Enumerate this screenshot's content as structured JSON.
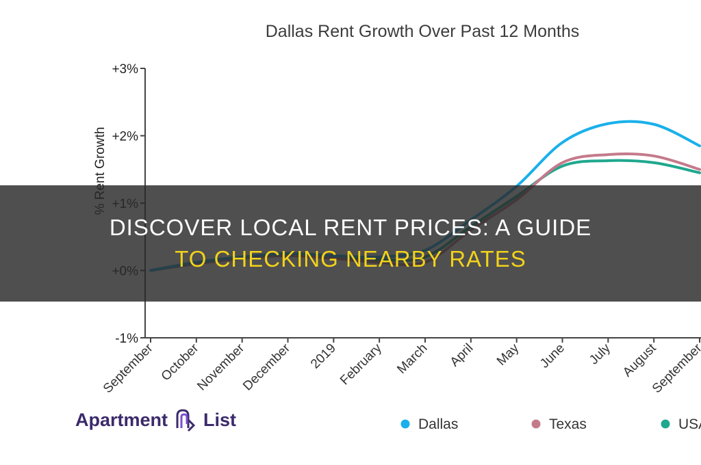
{
  "chart_data": {
    "type": "line",
    "title": "Dallas Rent Growth Over Past 12 Months",
    "ylabel": "% Rent Growth",
    "xlabel": "",
    "categories": [
      "September",
      "October",
      "November",
      "December",
      "2019",
      "February",
      "March",
      "April",
      "May",
      "June",
      "July",
      "August",
      "September"
    ],
    "yticks": [
      "+3%",
      "+2%",
      "+1%",
      "+0%",
      "-1%"
    ],
    "ytick_values": [
      3,
      2,
      1,
      0,
      -1
    ],
    "ylim": [
      -1,
      3
    ],
    "series": [
      {
        "name": "Dallas",
        "color": "#1ab0ea",
        "values": [
          0.0,
          0.12,
          0.2,
          0.25,
          0.22,
          0.2,
          0.3,
          0.75,
          1.25,
          1.9,
          2.18,
          2.17,
          1.85
        ]
      },
      {
        "name": "Texas",
        "color": "#c47a8a",
        "values": [
          0.0,
          0.1,
          0.18,
          0.22,
          0.18,
          0.12,
          0.12,
          0.6,
          1.05,
          1.6,
          1.72,
          1.7,
          1.5
        ]
      },
      {
        "name": "USA",
        "color": "#1fa88e",
        "values": [
          0.0,
          0.12,
          0.2,
          0.24,
          0.2,
          0.16,
          0.2,
          0.65,
          1.1,
          1.55,
          1.63,
          1.6,
          1.45
        ]
      }
    ],
    "grid": false,
    "legend_position": "bottom-right"
  },
  "logo": {
    "left": "Apartment",
    "right": "List"
  },
  "banner": {
    "line1": "DISCOVER LOCAL RENT PRICES: A GUIDE",
    "line2": "TO CHECKING NEARBY RATES"
  }
}
